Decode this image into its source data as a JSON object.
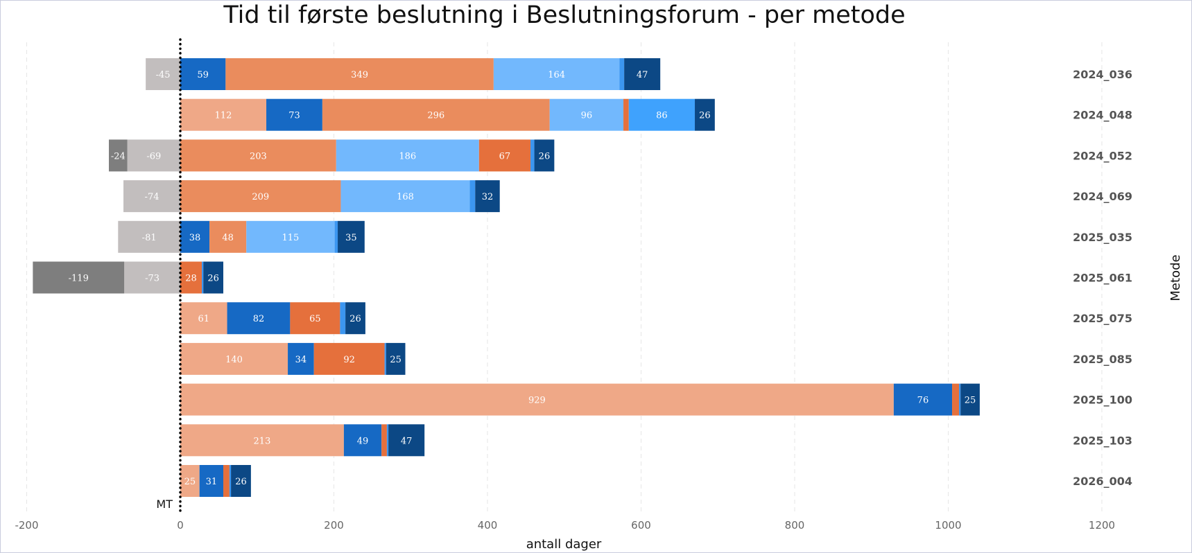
{
  "chart_data": {
    "type": "bar",
    "orientation": "horizontal",
    "stacked": true,
    "title": "Tid til første beslutning i Beslutningsforum - per metode",
    "xlabel": "antall dager",
    "ylabel": "Metode",
    "xlim": [
      -200,
      1200
    ],
    "xticks": [
      -200,
      0,
      200,
      400,
      600,
      800,
      1000,
      1200
    ],
    "grid": "vertical-dashed",
    "reference_line": {
      "x": 0,
      "label": "MT"
    },
    "categories": [
      "2024_036",
      "2024_048",
      "2024_052",
      "2024_069",
      "2025_035",
      "2025_061",
      "2025_075",
      "2025_085",
      "2025_100",
      "2025_103",
      "2026_004"
    ],
    "rows": [
      {
        "category": "2024_036",
        "segments": [
          {
            "value": -45,
            "color": "#c2bebe"
          },
          {
            "value": 59,
            "color": "#1669c4"
          },
          {
            "value": 349,
            "color": "#ea8c5d"
          },
          {
            "value": 164,
            "color": "#72b8fd"
          },
          {
            "value": 6,
            "color": "#3c96f0"
          },
          {
            "value": 47,
            "color": "#0c4885"
          }
        ]
      },
      {
        "category": "2024_048",
        "segments": [
          {
            "value": 112,
            "color": "#efa887"
          },
          {
            "value": 73,
            "color": "#1669c4"
          },
          {
            "value": 296,
            "color": "#ea8c5d"
          },
          {
            "value": 96,
            "color": "#72b8fd"
          },
          {
            "value": 7,
            "color": "#e5703c"
          },
          {
            "value": 86,
            "color": "#3fa2fd"
          },
          {
            "value": 26,
            "color": "#0c4885"
          }
        ]
      },
      {
        "category": "2024_052",
        "segments": [
          {
            "value": -69,
            "color": "#c2bebe"
          },
          {
            "value": -24,
            "color": "#7e7e7e"
          },
          {
            "value": 203,
            "color": "#ea8c5d"
          },
          {
            "value": 186,
            "color": "#72b8fd"
          },
          {
            "value": 67,
            "color": "#e5703c"
          },
          {
            "value": 5,
            "color": "#3c96f0"
          },
          {
            "value": 26,
            "color": "#0c4885"
          }
        ]
      },
      {
        "category": "2024_069",
        "segments": [
          {
            "value": -74,
            "color": "#c2bebe"
          },
          {
            "value": 209,
            "color": "#ea8c5d"
          },
          {
            "value": 168,
            "color": "#72b8fd"
          },
          {
            "value": 7,
            "color": "#3c96f0"
          },
          {
            "value": 32,
            "color": "#0c4885"
          }
        ]
      },
      {
        "category": "2025_035",
        "segments": [
          {
            "value": -81,
            "color": "#c2bebe"
          },
          {
            "value": 38,
            "color": "#1669c4"
          },
          {
            "value": 48,
            "color": "#ea8c5d"
          },
          {
            "value": 115,
            "color": "#72b8fd"
          },
          {
            "value": 4,
            "color": "#3c96f0"
          },
          {
            "value": 35,
            "color": "#0c4885"
          }
        ]
      },
      {
        "category": "2025_061",
        "segments": [
          {
            "value": -73,
            "color": "#c2bebe"
          },
          {
            "value": -119,
            "color": "#7e7e7e"
          },
          {
            "value": 28,
            "color": "#e5703c"
          },
          {
            "value": 2,
            "color": "#3c96f0"
          },
          {
            "value": 26,
            "color": "#0c4885"
          }
        ]
      },
      {
        "category": "2025_075",
        "segments": [
          {
            "value": 61,
            "color": "#efa887"
          },
          {
            "value": 82,
            "color": "#1669c4"
          },
          {
            "value": 65,
            "color": "#e5703c"
          },
          {
            "value": 7,
            "color": "#3c96f0"
          },
          {
            "value": 26,
            "color": "#0c4885"
          }
        ]
      },
      {
        "category": "2025_085",
        "segments": [
          {
            "value": 140,
            "color": "#efa887"
          },
          {
            "value": 34,
            "color": "#1669c4"
          },
          {
            "value": 92,
            "color": "#e5703c"
          },
          {
            "value": 2,
            "color": "#3c96f0"
          },
          {
            "value": 25,
            "color": "#0c4885"
          }
        ]
      },
      {
        "category": "2025_100",
        "segments": [
          {
            "value": 929,
            "color": "#efa887"
          },
          {
            "value": 76,
            "color": "#1669c4"
          },
          {
            "value": 9,
            "color": "#e5703c"
          },
          {
            "value": 2,
            "color": "#3c96f0"
          },
          {
            "value": 25,
            "color": "#0c4885"
          }
        ]
      },
      {
        "category": "2025_103",
        "segments": [
          {
            "value": 213,
            "color": "#efa887"
          },
          {
            "value": 49,
            "color": "#1669c4"
          },
          {
            "value": 7,
            "color": "#e5703c"
          },
          {
            "value": 2,
            "color": "#3c96f0"
          },
          {
            "value": 47,
            "color": "#0c4885"
          }
        ]
      },
      {
        "category": "2026_004",
        "segments": [
          {
            "value": 25,
            "color": "#efa887"
          },
          {
            "value": 31,
            "color": "#1669c4"
          },
          {
            "value": 8,
            "color": "#e5703c"
          },
          {
            "value": 2,
            "color": "#3c96f0"
          },
          {
            "value": 26,
            "color": "#0c4885"
          }
        ]
      }
    ]
  }
}
